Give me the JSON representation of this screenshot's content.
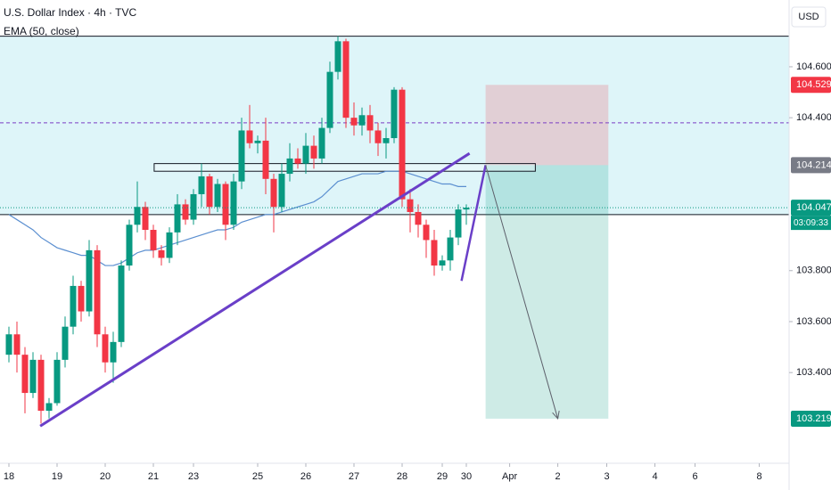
{
  "chart_data": {
    "type": "candlestick",
    "title": "U.S. Dollar Index · 4h · TVC",
    "subtitle": "EMA (50, close)",
    "currency": "USD",
    "up_color": "#089981",
    "down_color": "#f23645",
    "open": [
      103.47,
      103.55,
      103.47,
      103.32,
      103.45,
      103.25,
      103.28,
      103.45,
      103.58,
      103.74,
      103.64,
      103.88,
      103.55,
      103.44,
      103.52,
      103.82,
      103.98,
      104.05,
      103.96,
      103.88,
      103.85,
      103.95,
      104.06,
      104.0,
      104.1,
      104.17,
      104.05,
      104.14,
      103.98,
      104.15,
      104.35,
      104.3,
      104.31,
      104.16,
      104.05,
      104.18,
      104.24,
      104.22,
      104.29,
      104.24,
      104.36,
      104.58,
      104.7,
      104.4,
      104.37,
      104.41,
      104.35,
      104.3,
      104.32,
      104.51,
      104.08,
      104.03,
      103.98,
      103.92,
      103.82,
      103.84,
      103.93,
      104.04
    ],
    "high": [
      103.58,
      103.6,
      103.5,
      103.48,
      103.47,
      103.3,
      103.48,
      103.62,
      103.78,
      103.76,
      103.92,
      103.9,
      103.58,
      103.56,
      103.84,
      104.0,
      104.15,
      104.07,
      103.98,
      103.9,
      103.97,
      104.1,
      104.08,
      104.12,
      104.22,
      104.18,
      104.16,
      104.15,
      104.18,
      104.4,
      104.45,
      104.33,
      104.4,
      104.18,
      104.22,
      104.3,
      104.28,
      104.34,
      104.33,
      104.4,
      104.62,
      104.72,
      104.71,
      104.46,
      104.44,
      104.45,
      104.38,
      104.36,
      104.52,
      104.52,
      104.12,
      104.06,
      104.0,
      103.96,
      103.86,
      103.96,
      104.06,
      104.06
    ],
    "low": [
      103.44,
      103.4,
      103.24,
      103.3,
      103.2,
      103.22,
      103.27,
      103.42,
      103.55,
      103.6,
      103.62,
      103.5,
      103.4,
      103.36,
      103.5,
      103.8,
      103.95,
      103.92,
      103.85,
      103.82,
      103.83,
      103.9,
      103.98,
      103.98,
      104.05,
      104.02,
      104.03,
      103.92,
      103.96,
      104.12,
      104.28,
      104.26,
      104.1,
      103.95,
      104.03,
      104.15,
      104.2,
      104.18,
      104.2,
      104.22,
      104.34,
      104.55,
      104.36,
      104.33,
      104.33,
      104.3,
      104.25,
      104.24,
      104.3,
      104.05,
      103.95,
      103.93,
      103.85,
      103.78,
      103.8,
      103.8,
      103.9,
      103.98
    ],
    "close": [
      103.55,
      103.47,
      103.32,
      103.45,
      103.25,
      103.28,
      103.45,
      103.58,
      103.74,
      103.64,
      103.88,
      103.55,
      103.44,
      103.52,
      103.82,
      103.98,
      104.05,
      103.96,
      103.88,
      103.85,
      103.95,
      104.06,
      104.0,
      104.1,
      104.17,
      104.05,
      104.14,
      103.98,
      104.15,
      104.35,
      104.3,
      104.31,
      104.16,
      104.05,
      104.18,
      104.24,
      104.22,
      104.29,
      104.24,
      104.36,
      104.58,
      104.7,
      104.4,
      104.37,
      104.41,
      104.35,
      104.3,
      104.32,
      104.51,
      104.08,
      104.03,
      103.98,
      103.92,
      103.82,
      103.84,
      103.93,
      104.04,
      104.047
    ],
    "ema": {
      "color": "#5b8fd0",
      "values": [
        104.02,
        104.0,
        103.98,
        103.96,
        103.93,
        103.91,
        103.89,
        103.88,
        103.87,
        103.86,
        103.86,
        103.84,
        103.82,
        103.82,
        103.83,
        103.85,
        103.87,
        103.88,
        103.88,
        103.89,
        103.9,
        103.91,
        103.92,
        103.93,
        103.94,
        103.95,
        103.96,
        103.96,
        103.97,
        103.99,
        104.0,
        104.01,
        104.02,
        104.02,
        104.03,
        104.04,
        104.05,
        104.06,
        104.07,
        104.09,
        104.12,
        104.15,
        104.16,
        104.17,
        104.18,
        104.18,
        104.18,
        104.19,
        104.19,
        104.19,
        104.18,
        104.17,
        104.16,
        104.15,
        104.14,
        104.14,
        104.13,
        104.13
      ]
    },
    "xlim": [
      -1.111,
      97.222
    ],
    "ylim": [
      103.044,
      104.862
    ],
    "xticks": [
      {
        "value": 0,
        "label": "18"
      },
      {
        "value": 6,
        "label": "19"
      },
      {
        "value": 12,
        "label": "20"
      },
      {
        "value": 18,
        "label": "21"
      },
      {
        "value": 23,
        "label": "23"
      },
      {
        "value": 31,
        "label": "25"
      },
      {
        "value": 37,
        "label": "26"
      },
      {
        "value": 43,
        "label": "27"
      },
      {
        "value": 49,
        "label": "28"
      },
      {
        "value": 54,
        "label": "29"
      },
      {
        "value": 57,
        "label": "30"
      },
      {
        "value": 62.4,
        "label": "Apr"
      },
      {
        "value": 68.4,
        "label": "2"
      },
      {
        "value": 74.5,
        "label": "3"
      },
      {
        "value": 80.5,
        "label": "4"
      },
      {
        "value": 85.5,
        "label": "6"
      },
      {
        "value": 93.5,
        "label": "8"
      }
    ],
    "yticks": [
      {
        "value": 103.4,
        "label": "103.400"
      },
      {
        "value": 103.6,
        "label": "103.600"
      },
      {
        "value": 103.8,
        "label": "103.800"
      },
      {
        "value": 104.4,
        "label": "104.400"
      },
      {
        "value": 104.6,
        "label": "104.600"
      }
    ],
    "zone": {
      "top": 104.72,
      "bottom": 104.02,
      "color": "#d8f3f8"
    },
    "dashed_level": {
      "value": 104.38,
      "color": "#7b3fc4"
    },
    "box": {
      "x": [
        18.1,
        65.6
      ],
      "y": [
        104.19,
        104.22
      ]
    },
    "trendline": {
      "x": [
        3.9,
        57.4
      ],
      "y": [
        103.19,
        104.26
      ],
      "color": "#6a3fc8"
    },
    "leg": {
      "x": [
        56.4,
        59.4
      ],
      "y": [
        103.76,
        104.214
      ]
    },
    "position": {
      "x": [
        59.4,
        74.7
      ],
      "entry": 104.214,
      "stop": 104.529,
      "target": 103.219,
      "arrow_x": 68.4
    },
    "price_labels": [
      {
        "value": 104.529,
        "label": "104.529",
        "color": "#f23645"
      },
      {
        "value": 104.214,
        "label": "104.214",
        "color": "#787b86"
      },
      {
        "value": 104.047,
        "label": "104.047",
        "color": "#089981"
      },
      {
        "value": 103.219,
        "label": "103.219",
        "color": "#089981"
      }
    ],
    "countdown": "03:09:33"
  }
}
